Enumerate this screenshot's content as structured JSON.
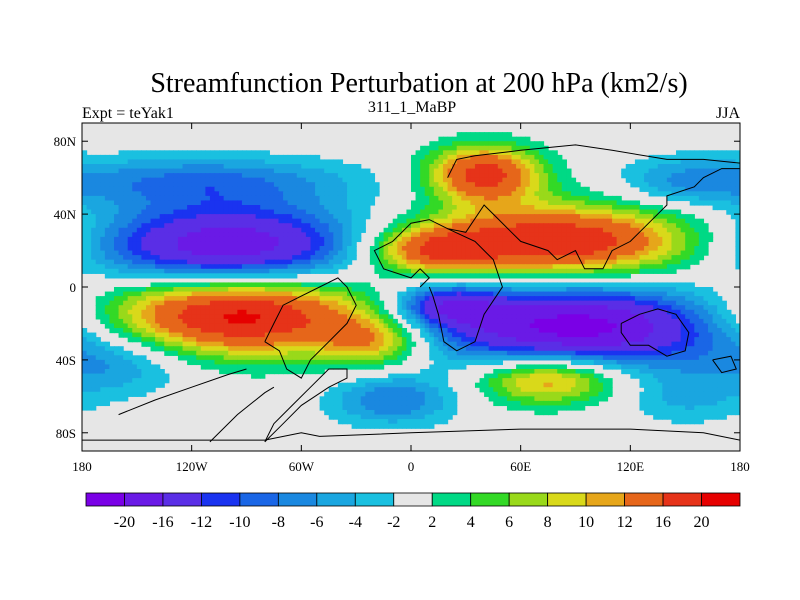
{
  "chart_data": {
    "type": "contour_map",
    "title": "Streamfunction Perturbation at 200 hPa (km2/s)",
    "left_label": "Expt = teYak1",
    "center_label": "311_1_MaBP",
    "right_label": "JJA",
    "x_ticks": [
      "180",
      "120W",
      "60W",
      "0",
      "60E",
      "120E",
      "180"
    ],
    "x_tick_values": [
      -180,
      -120,
      -60,
      0,
      60,
      120,
      180
    ],
    "y_ticks": [
      "80N",
      "40N",
      "0",
      "40S",
      "80S"
    ],
    "y_tick_values": [
      80,
      40,
      0,
      -40,
      -80
    ],
    "xlim": [
      -180,
      180
    ],
    "ylim": [
      -90,
      90
    ],
    "colorbar_labels": [
      "-20",
      "-16",
      "-12",
      "-10",
      "-8",
      "-6",
      "-4",
      "-2",
      "2",
      "4",
      "6",
      "8",
      "10",
      "12",
      "16",
      "20"
    ],
    "colorbar_colors": [
      "#7a00e6",
      "#6a1ae6",
      "#5a2ee6",
      "#1a33f0",
      "#1a66e6",
      "#1a88e0",
      "#1aa6e0",
      "#1ac0e0",
      "#e6e6e6",
      "#00d985",
      "#33d926",
      "#99d91a",
      "#d9d91a",
      "#e6a61a",
      "#e6661a",
      "#e63319",
      "#e60000"
    ],
    "anomalies": [
      {
        "lon": -100,
        "lat": 22,
        "value": -20,
        "sx": 55,
        "sy": 16
      },
      {
        "lon": 90,
        "lat": -22,
        "value": -22,
        "sx": 60,
        "sy": 16
      },
      {
        "lon": -115,
        "lat": 58,
        "value": -8,
        "sx": 60,
        "sy": 10
      },
      {
        "lon": 20,
        "lat": -10,
        "value": -12,
        "sx": 20,
        "sy": 8
      },
      {
        "lon": -160,
        "lat": -42,
        "value": -6,
        "sx": 30,
        "sy": 12
      },
      {
        "lon": -10,
        "lat": -62,
        "value": -8,
        "sx": 25,
        "sy": 10
      },
      {
        "lon": 150,
        "lat": 58,
        "value": -5,
        "sx": 25,
        "sy": 10
      },
      {
        "lon": 150,
        "lat": -62,
        "value": -4,
        "sx": 25,
        "sy": 10
      },
      {
        "lon": -95,
        "lat": -15,
        "value": 22,
        "sx": 55,
        "sy": 16
      },
      {
        "lon": 80,
        "lat": 25,
        "value": 20,
        "sx": 55,
        "sy": 14
      },
      {
        "lon": 40,
        "lat": 62,
        "value": 18,
        "sx": 22,
        "sy": 11
      },
      {
        "lon": 75,
        "lat": -50,
        "value": 14,
        "sx": 28,
        "sy": 10
      },
      {
        "lon": -20,
        "lat": -30,
        "value": 10,
        "sx": 20,
        "sy": 10
      },
      {
        "lon": 10,
        "lat": 20,
        "value": 12,
        "sx": 25,
        "sy": 9
      }
    ],
    "coastline": [
      [
        [
          -180,
          -84
        ],
        [
          -120,
          -84
        ],
        [
          -80,
          -84
        ],
        [
          -60,
          -80
        ],
        [
          -50,
          -82
        ],
        [
          0,
          -80
        ],
        [
          60,
          -78
        ],
        [
          120,
          -78
        ],
        [
          160,
          -80
        ],
        [
          180,
          -84
        ]
      ],
      [
        [
          -80,
          -30
        ],
        [
          -75,
          -20
        ],
        [
          -70,
          -10
        ],
        [
          -60,
          -5
        ],
        [
          -50,
          0
        ],
        [
          -40,
          5
        ],
        [
          -35,
          0
        ],
        [
          -30,
          -10
        ],
        [
          -35,
          -20
        ],
        [
          -45,
          -30
        ],
        [
          -55,
          -40
        ],
        [
          -60,
          -50
        ],
        [
          -68,
          -45
        ],
        [
          -72,
          -35
        ],
        [
          -80,
          -30
        ]
      ],
      [
        [
          -80,
          -85
        ],
        [
          -70,
          -75
        ],
        [
          -60,
          -65
        ],
        [
          -45,
          -55
        ],
        [
          -35,
          -50
        ],
        [
          -35,
          -45
        ],
        [
          -45,
          -45
        ],
        [
          -55,
          -55
        ],
        [
          -65,
          -65
        ],
        [
          -75,
          -75
        ],
        [
          -80,
          -85
        ]
      ],
      [
        [
          -160,
          -70
        ],
        [
          -140,
          -62
        ],
        [
          -120,
          -55
        ],
        [
          -100,
          -48
        ],
        [
          -90,
          -45
        ]
      ],
      [
        [
          -110,
          -85
        ],
        [
          -95,
          -70
        ],
        [
          -80,
          -58
        ],
        [
          -75,
          -55
        ]
      ],
      [
        [
          5,
          0
        ],
        [
          10,
          5
        ],
        [
          5,
          10
        ],
        [
          0,
          5
        ],
        [
          -15,
          10
        ],
        [
          -20,
          20
        ],
        [
          -10,
          25
        ],
        [
          0,
          35
        ],
        [
          10,
          37
        ],
        [
          20,
          32
        ],
        [
          30,
          30
        ],
        [
          40,
          45
        ],
        [
          45,
          40
        ],
        [
          55,
          30
        ],
        [
          60,
          25
        ],
        [
          75,
          20
        ],
        [
          80,
          15
        ],
        [
          90,
          20
        ],
        [
          95,
          10
        ],
        [
          105,
          10
        ],
        [
          110,
          20
        ],
        [
          120,
          25
        ],
        [
          130,
          35
        ],
        [
          140,
          45
        ],
        [
          140,
          50
        ],
        [
          155,
          55
        ],
        [
          160,
          60
        ],
        [
          170,
          65
        ],
        [
          180,
          65
        ]
      ],
      [
        [
          20,
          32
        ],
        [
          35,
          25
        ],
        [
          45,
          15
        ],
        [
          50,
          0
        ],
        [
          40,
          -15
        ],
        [
          35,
          -30
        ],
        [
          25,
          -35
        ],
        [
          18,
          -30
        ],
        [
          15,
          -15
        ],
        [
          12,
          -5
        ],
        [
          10,
          0
        ]
      ],
      [
        [
          20,
          60
        ],
        [
          25,
          70
        ],
        [
          35,
          72
        ],
        [
          60,
          75
        ],
        [
          90,
          78
        ],
        [
          110,
          75
        ],
        [
          140,
          70
        ],
        [
          160,
          70
        ],
        [
          180,
          68
        ]
      ],
      [
        [
          115,
          -20
        ],
        [
          125,
          -15
        ],
        [
          135,
          -12
        ],
        [
          145,
          -15
        ],
        [
          152,
          -25
        ],
        [
          150,
          -35
        ],
        [
          140,
          -38
        ],
        [
          130,
          -32
        ],
        [
          120,
          -32
        ],
        [
          115,
          -25
        ],
        [
          115,
          -20
        ]
      ],
      [
        [
          165,
          -40
        ],
        [
          175,
          -38
        ],
        [
          178,
          -45
        ],
        [
          170,
          -47
        ],
        [
          165,
          -40
        ]
      ]
    ]
  }
}
